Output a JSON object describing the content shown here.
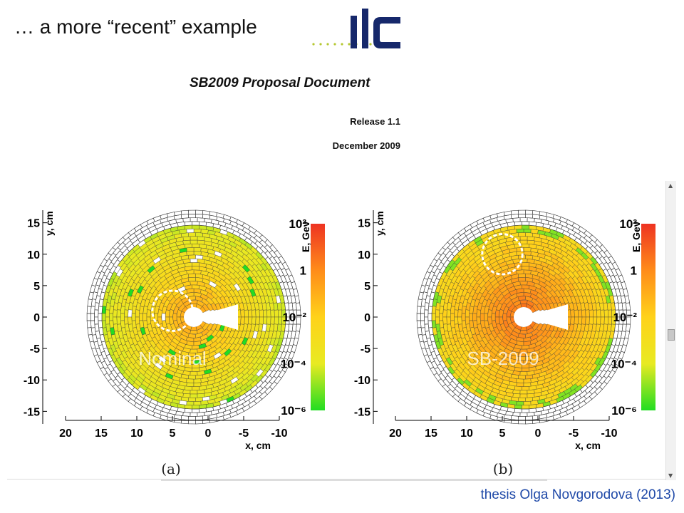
{
  "slide": {
    "title": "… a more “recent” example",
    "credit": "thesis Olga Novgorodova (2013)"
  },
  "logo": {
    "text": "ilc",
    "description": "ILC logo"
  },
  "document": {
    "title": "SB2009 Proposal Document",
    "release": "Release 1.1",
    "date": "December 2009"
  },
  "colors": {
    "credit": "#1f49a8",
    "logo_dark": "#16286b",
    "logo_dots": "#b5c832"
  },
  "chart_data": [
    {
      "type": "heatmap",
      "panel_label": "(a)",
      "annotation": "Nominal",
      "xlabel": "x, cm",
      "ylabel": "y, cm",
      "x_ticks": [
        "20",
        "15",
        "10",
        "5",
        "0",
        "-5",
        "-10"
      ],
      "y_ticks": [
        "15",
        "10",
        "5",
        "0",
        "-5",
        "-10",
        "-15"
      ],
      "xlim": [
        20,
        -10
      ],
      "ylim": [
        -17,
        17
      ],
      "colorbar": {
        "label": "E, Gev",
        "ticks": [
          "10²",
          "1",
          "10⁻²",
          "10⁻⁴",
          "10⁻⁶"
        ],
        "log_range": [
          -6,
          2
        ],
        "colors": [
          "#ee3322",
          "#ff8c1a",
          "#ffd21a",
          "#e8ea22",
          "#22dd22"
        ]
      },
      "circle_marker": {
        "center": [
          5,
          1
        ],
        "radius": 3.2
      },
      "beam_hole": {
        "center": [
          2,
          0
        ]
      },
      "energy_level": "low"
    },
    {
      "type": "heatmap",
      "panel_label": "(b)",
      "annotation": "SB-2009",
      "xlabel": "x, cm",
      "ylabel": "y, cm",
      "x_ticks": [
        "20",
        "15",
        "10",
        "5",
        "0",
        "-5",
        "-10"
      ],
      "y_ticks": [
        "15",
        "10",
        "5",
        "0",
        "-5",
        "-10",
        "-15"
      ],
      "xlim": [
        20,
        -10
      ],
      "ylim": [
        -17,
        17
      ],
      "colorbar": {
        "label": "E, Gev",
        "ticks": [
          "10²",
          "1",
          "10⁻²",
          "10⁻⁴",
          "10⁻⁶"
        ],
        "log_range": [
          -6,
          2
        ],
        "colors": [
          "#ee3322",
          "#ff8c1a",
          "#ffd21a",
          "#e8ea22",
          "#22dd22"
        ]
      },
      "circle_marker": {
        "center": [
          5,
          10
        ],
        "radius": 3.2
      },
      "beam_hole": {
        "center": [
          2,
          0
        ]
      },
      "energy_level": "high"
    }
  ]
}
